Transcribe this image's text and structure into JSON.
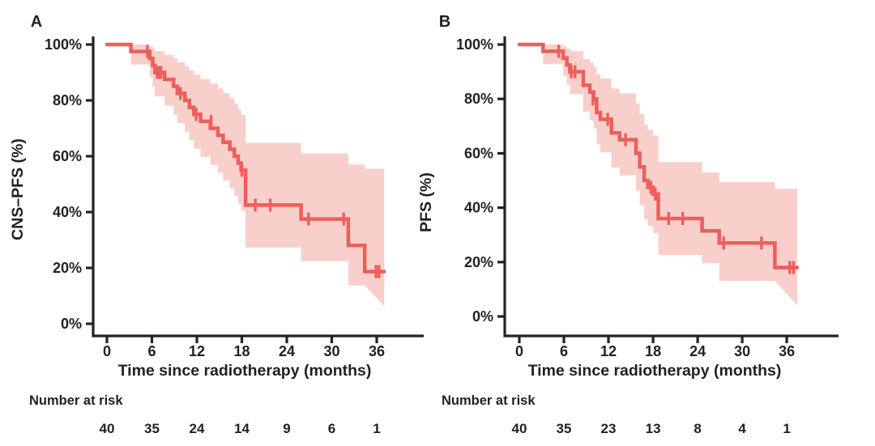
{
  "figure": {
    "background": "#ffffff",
    "text_color": "#231f20",
    "axis_color": "#262122"
  },
  "chart_data": [
    {
      "type": "line",
      "subtype": "kaplan-meier-step",
      "panel_label": "A",
      "ylabel": "CNS–PFS (%)",
      "xlabel": "Time since radiotherapy (months)",
      "risk_label": "Number at risk",
      "x_ticks": [
        0,
        6,
        12,
        18,
        24,
        30,
        36
      ],
      "y_ticks": [
        0,
        20,
        40,
        60,
        80,
        100
      ],
      "y_tick_suffix": "%",
      "xlim": [
        0,
        42
      ],
      "ylim": [
        0,
        100
      ],
      "grid": false,
      "legend": "none",
      "number_at_risk": [
        40,
        35,
        24,
        14,
        9,
        6,
        1
      ],
      "curve_color": "#ec5f5b",
      "band_color": "#f9cfcb",
      "km": {
        "start_value": 100,
        "end_time": 37.0,
        "steps": [
          [
            3.2,
            97.5
          ],
          [
            5.7,
            95
          ],
          [
            6.1,
            92.5
          ],
          [
            6.4,
            90
          ],
          [
            7.7,
            87.5
          ],
          [
            8.9,
            85
          ],
          [
            9.4,
            82.5
          ],
          [
            10.4,
            80
          ],
          [
            11.0,
            77.5
          ],
          [
            11.6,
            75
          ],
          [
            12.5,
            72.5
          ],
          [
            13.8,
            70
          ],
          [
            14.8,
            67.5
          ],
          [
            15.5,
            65
          ],
          [
            16.4,
            62.5
          ],
          [
            17.0,
            60
          ],
          [
            17.5,
            57.5
          ],
          [
            17.9,
            55
          ],
          [
            18.5,
            42.5
          ],
          [
            25.9,
            37.5
          ],
          [
            32.2,
            28.1
          ],
          [
            34.4,
            18.7
          ]
        ],
        "censors": [
          [
            5.4,
            97.5
          ],
          [
            6.7,
            90
          ],
          [
            6.95,
            90
          ],
          [
            7.2,
            90
          ],
          [
            9.8,
            82.5
          ],
          [
            11.9,
            75
          ],
          [
            13.9,
            72.5
          ],
          [
            18.0,
            55
          ],
          [
            19.8,
            42.5
          ],
          [
            21.8,
            42.5
          ],
          [
            26.9,
            37.5
          ],
          [
            31.6,
            37.5
          ],
          [
            35.9,
            18.7
          ],
          [
            36.3,
            18.7
          ]
        ],
        "ci_upper": [
          [
            3.2,
            100
          ],
          [
            5.7,
            99.4
          ],
          [
            6.1,
            98.7
          ],
          [
            6.4,
            97.6
          ],
          [
            7.7,
            96.3
          ],
          [
            8.9,
            95
          ],
          [
            9.4,
            93.6
          ],
          [
            10.4,
            92.1
          ],
          [
            11.0,
            90.7
          ],
          [
            11.6,
            89.2
          ],
          [
            12.5,
            87.6
          ],
          [
            13.8,
            86
          ],
          [
            14.8,
            84.3
          ],
          [
            15.5,
            82.6
          ],
          [
            16.4,
            80.7
          ],
          [
            17.0,
            78.8
          ],
          [
            17.5,
            76.8
          ],
          [
            17.9,
            74.7
          ],
          [
            18.5,
            64.8
          ],
          [
            25.9,
            61
          ],
          [
            32.2,
            57
          ],
          [
            34.4,
            55.5
          ]
        ],
        "ci_lower": [
          [
            3.2,
            92.8
          ],
          [
            5.7,
            88.3
          ],
          [
            6.1,
            84.8
          ],
          [
            6.4,
            81.4
          ],
          [
            7.7,
            78.1
          ],
          [
            8.9,
            74.9
          ],
          [
            9.4,
            71.8
          ],
          [
            10.4,
            68.7
          ],
          [
            11.0,
            65.7
          ],
          [
            11.6,
            62.7
          ],
          [
            12.5,
            59.8
          ],
          [
            13.8,
            56.9
          ],
          [
            14.8,
            54.1
          ],
          [
            15.5,
            51.3
          ],
          [
            16.4,
            48.5
          ],
          [
            17.0,
            45.8
          ],
          [
            17.5,
            43.1
          ],
          [
            17.9,
            40.5
          ],
          [
            18.5,
            27.3
          ],
          [
            25.9,
            22.4
          ],
          [
            32.2,
            13.7
          ],
          [
            34.4,
            6.4
          ]
        ]
      }
    },
    {
      "type": "line",
      "subtype": "kaplan-meier-step",
      "panel_label": "B",
      "ylabel": "PFS (%)",
      "xlabel": "Time since radiotherapy (months)",
      "risk_label": "Number at risk",
      "x_ticks": [
        0,
        6,
        12,
        18,
        24,
        30,
        36
      ],
      "y_ticks": [
        0,
        20,
        40,
        60,
        80,
        100
      ],
      "y_tick_suffix": "%",
      "xlim": [
        0,
        42
      ],
      "ylim": [
        0,
        100
      ],
      "grid": false,
      "legend": "none",
      "number_at_risk": [
        40,
        35,
        23,
        13,
        8,
        4,
        1
      ],
      "curve_color": "#ec5f5b",
      "band_color": "#f9cfcb",
      "km": {
        "start_value": 100,
        "end_time": 37.4,
        "steps": [
          [
            3.2,
            97.5
          ],
          [
            5.9,
            95
          ],
          [
            6.4,
            92.5
          ],
          [
            6.8,
            90
          ],
          [
            8.6,
            85
          ],
          [
            9.5,
            82.5
          ],
          [
            10.0,
            80
          ],
          [
            10.4,
            75
          ],
          [
            10.9,
            72.5
          ],
          [
            12.4,
            67.5
          ],
          [
            13.5,
            65
          ],
          [
            15.7,
            60
          ],
          [
            16.2,
            55
          ],
          [
            16.8,
            50
          ],
          [
            17.3,
            47.5
          ],
          [
            18.0,
            45
          ],
          [
            18.7,
            36
          ],
          [
            24.6,
            31.5
          ],
          [
            26.9,
            27
          ],
          [
            34.4,
            18
          ]
        ],
        "censors": [
          [
            5.3,
            97.5
          ],
          [
            7.0,
            90
          ],
          [
            7.5,
            90
          ],
          [
            9.9,
            80
          ],
          [
            11.9,
            72.5
          ],
          [
            14.3,
            65
          ],
          [
            17.7,
            47.5
          ],
          [
            18.3,
            45
          ],
          [
            20.1,
            36
          ],
          [
            22.0,
            36
          ],
          [
            27.5,
            27
          ],
          [
            32.6,
            27
          ],
          [
            36.4,
            18
          ],
          [
            36.9,
            18
          ]
        ],
        "ci_upper": [
          [
            3.2,
            100
          ],
          [
            5.9,
            99.4
          ],
          [
            6.4,
            98.6
          ],
          [
            6.8,
            97.6
          ],
          [
            8.6,
            94.6
          ],
          [
            9.5,
            93.2
          ],
          [
            10.0,
            91.8
          ],
          [
            10.4,
            89
          ],
          [
            10.9,
            87.5
          ],
          [
            12.4,
            83.8
          ],
          [
            13.5,
            82
          ],
          [
            15.7,
            78.3
          ],
          [
            16.2,
            74.5
          ],
          [
            16.8,
            70.6
          ],
          [
            17.3,
            68.6
          ],
          [
            18.0,
            66.5
          ],
          [
            18.7,
            56.8
          ],
          [
            24.6,
            53
          ],
          [
            26.9,
            49.4
          ],
          [
            34.4,
            47
          ]
        ],
        "ci_lower": [
          [
            3.2,
            92.8
          ],
          [
            5.9,
            88.5
          ],
          [
            6.4,
            85.2
          ],
          [
            6.8,
            81.8
          ],
          [
            8.6,
            75.3
          ],
          [
            9.5,
            72.2
          ],
          [
            10.0,
            69.2
          ],
          [
            10.4,
            63.3
          ],
          [
            10.9,
            60.4
          ],
          [
            12.4,
            54.7
          ],
          [
            13.5,
            51.9
          ],
          [
            15.7,
            46.3
          ],
          [
            16.2,
            40.9
          ],
          [
            16.8,
            35.7
          ],
          [
            17.3,
            33.2
          ],
          [
            18.0,
            30.7
          ],
          [
            18.7,
            22.6
          ],
          [
            24.6,
            19.6
          ],
          [
            26.9,
            13.1
          ],
          [
            34.4,
            4.2
          ]
        ]
      }
    }
  ]
}
